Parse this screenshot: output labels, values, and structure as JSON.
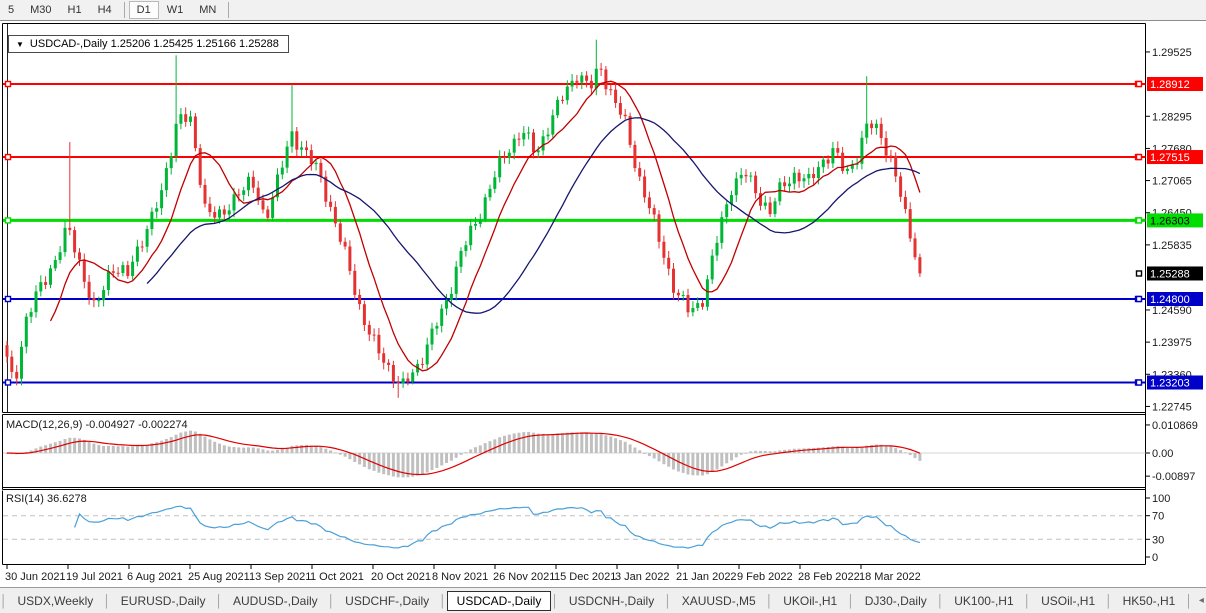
{
  "toolbar": {
    "timeframes": [
      {
        "label": "5",
        "active": false,
        "sep_after": false
      },
      {
        "label": "M30",
        "active": false,
        "sep_after": false
      },
      {
        "label": "H1",
        "active": false,
        "sep_after": false
      },
      {
        "label": "H4",
        "active": false,
        "sep_after": true
      },
      {
        "label": "D1",
        "active": true,
        "sep_after": false
      },
      {
        "label": "W1",
        "active": false,
        "sep_after": false
      },
      {
        "label": "MN",
        "active": false,
        "sep_after": true
      }
    ]
  },
  "header": {
    "dropdown_icon": "▼",
    "title_text": "USDCAD-,Daily  1.25206 1.25425 1.25166 1.25288"
  },
  "macd": {
    "label": "MACD(12,26,9) -0.004927 -0.002274",
    "ticks": [
      {
        "label": "0.010869",
        "value": 0.010869
      },
      {
        "label": "0.00",
        "value": 0
      },
      {
        "label": "-0.00897",
        "value": -0.00897
      }
    ]
  },
  "rsi": {
    "label": "RSI(14) 36.6278",
    "ticks": [
      {
        "label": "100",
        "value": 100
      },
      {
        "label": "70",
        "value": 70
      },
      {
        "label": "30",
        "value": 30
      },
      {
        "label": "0",
        "value": 0
      }
    ],
    "dashed_levels": [
      70,
      30
    ]
  },
  "tabs": {
    "items": [
      {
        "label": "USDX,Weekly",
        "active": false
      },
      {
        "label": "EURUSD-,Daily",
        "active": false
      },
      {
        "label": "AUDUSD-,Daily",
        "active": false
      },
      {
        "label": "USDCHF-,Daily",
        "active": false
      },
      {
        "label": "USDCAD-,Daily",
        "active": true
      },
      {
        "label": "USDCNH-,Daily",
        "active": false
      },
      {
        "label": "XAUUSD-,M5",
        "active": false
      },
      {
        "label": "UKOil-,H1",
        "active": false
      },
      {
        "label": "DJ30-,Daily",
        "active": false
      },
      {
        "label": "UK100-,H1",
        "active": false
      },
      {
        "label": "USOil-,H1",
        "active": false
      },
      {
        "label": "HK50-,H1",
        "active": false
      }
    ],
    "scroll_left_icon": "◂",
    "scroll_right_icon": "▸"
  },
  "chart_data": {
    "type": "candlestick",
    "symbol": "USDCAD-",
    "timeframe": "Daily",
    "ohlc_display": {
      "open": "1.25206",
      "high": "1.25425",
      "low": "1.25166",
      "close": "1.25288"
    },
    "last_close": 1.25288,
    "current_price_label": {
      "label": "1.25288",
      "price": 1.25288,
      "bg": "#000000",
      "fg": "#ffffff"
    },
    "y_ticks": [
      {
        "label": "1.29525",
        "price": 1.29525
      },
      {
        "label": "1.28295",
        "price": 1.28295
      },
      {
        "label": "1.27680",
        "price": 1.2768
      },
      {
        "label": "1.27065",
        "price": 1.27065
      },
      {
        "label": "1.26450",
        "price": 1.2645
      },
      {
        "label": "1.25835",
        "price": 1.25835
      },
      {
        "label": "1.24590",
        "price": 1.2459
      },
      {
        "label": "1.23975",
        "price": 1.23975
      },
      {
        "label": "1.23360",
        "price": 1.2336
      },
      {
        "label": "1.22745",
        "price": 1.22745
      }
    ],
    "x_dates": [
      "30 Jun 2021",
      "19 Jul 2021",
      "6 Aug 2021",
      "25 Aug 2021",
      "13 Sep 2021",
      "1 Oct 2021",
      "20 Oct 2021",
      "8 Nov 2021",
      "26 Nov 2021",
      "15 Dec 2021",
      "3 Jan 2022",
      "21 Jan 2022",
      "9 Feb 2022",
      "28 Feb 2022",
      "18 Mar 2022"
    ],
    "levels": [
      {
        "label": "1.28912",
        "price": 1.28912,
        "color": "#ff0000",
        "width": 2,
        "text": "#ffffff"
      },
      {
        "label": "1.27515",
        "price": 1.27515,
        "color": "#ff0000",
        "width": 2,
        "text": "#ffffff"
      },
      {
        "label": "1.26303",
        "price": 1.26303,
        "color": "#00dd00",
        "width": 3,
        "text": "#000000"
      },
      {
        "label": "1.24800",
        "price": 1.248,
        "color": "#0000c8",
        "width": 2,
        "text": "#ffffff"
      },
      {
        "label": "1.23203",
        "price": 1.23203,
        "color": "#0000c8",
        "width": 2,
        "text": "#ffffff"
      }
    ],
    "price_path": [
      [
        6,
        1.237
      ],
      [
        14,
        1.2315
      ],
      [
        26,
        1.244
      ],
      [
        40,
        1.25
      ],
      [
        55,
        1.2555
      ],
      [
        68,
        1.2615
      ],
      [
        78,
        1.256
      ],
      [
        95,
        1.2455
      ],
      [
        112,
        1.2545
      ],
      [
        128,
        1.2525
      ],
      [
        145,
        1.261
      ],
      [
        162,
        1.268
      ],
      [
        178,
        1.2835
      ],
      [
        190,
        1.282
      ],
      [
        205,
        1.266
      ],
      [
        222,
        1.263
      ],
      [
        238,
        1.269
      ],
      [
        252,
        1.27
      ],
      [
        265,
        1.2635
      ],
      [
        280,
        1.272
      ],
      [
        292,
        1.2795
      ],
      [
        306,
        1.276
      ],
      [
        320,
        1.2715
      ],
      [
        334,
        1.2635
      ],
      [
        348,
        1.2545
      ],
      [
        362,
        1.245
      ],
      [
        376,
        1.2385
      ],
      [
        390,
        1.2345
      ],
      [
        402,
        1.231
      ],
      [
        416,
        1.2345
      ],
      [
        430,
        1.2405
      ],
      [
        445,
        1.2465
      ],
      [
        460,
        1.2565
      ],
      [
        476,
        1.2625
      ],
      [
        492,
        1.2705
      ],
      [
        508,
        1.2765
      ],
      [
        522,
        1.2805
      ],
      [
        536,
        1.2755
      ],
      [
        550,
        1.282
      ],
      [
        564,
        1.287
      ],
      [
        578,
        1.2915
      ],
      [
        590,
        1.288
      ],
      [
        600,
        1.2925
      ],
      [
        612,
        1.287
      ],
      [
        625,
        1.2815
      ],
      [
        638,
        1.272
      ],
      [
        650,
        1.265
      ],
      [
        663,
        1.257
      ],
      [
        676,
        1.249
      ],
      [
        690,
        1.2455
      ],
      [
        704,
        1.2485
      ],
      [
        718,
        1.26
      ],
      [
        731,
        1.2695
      ],
      [
        745,
        1.272
      ],
      [
        758,
        1.268
      ],
      [
        770,
        1.2645
      ],
      [
        783,
        1.27
      ],
      [
        796,
        1.272
      ],
      [
        808,
        1.27
      ],
      [
        820,
        1.274
      ],
      [
        833,
        1.2762
      ],
      [
        846,
        1.272
      ],
      [
        858,
        1.2758
      ],
      [
        868,
        1.2815
      ],
      [
        880,
        1.28
      ],
      [
        893,
        1.2735
      ],
      [
        905,
        1.264
      ],
      [
        916,
        1.2565
      ],
      [
        925,
        1.25288
      ]
    ],
    "wick_extremes": [
      {
        "x": 68,
        "high": 1.278
      },
      {
        "x": 178,
        "high": 1.2946
      },
      {
        "x": 290,
        "high": 1.289
      },
      {
        "x": 398,
        "low": 1.2291
      },
      {
        "x": 597,
        "high": 1.2976
      },
      {
        "x": 866,
        "high": 1.2906
      }
    ],
    "indicators": [
      {
        "name": "MACD",
        "params": "12,26,9",
        "main": -0.004927,
        "signal": -0.002274
      },
      {
        "name": "RSI",
        "params": "14",
        "value": 36.6278
      }
    ],
    "moving_averages": [
      {
        "period": 10,
        "color": "#c00000"
      },
      {
        "period": 30,
        "color": "#16166e"
      }
    ],
    "colors": {
      "bull": "#00b636",
      "bear": "#e43232",
      "macd_hist": "#c0c0c0",
      "macd_signal": "#e00000",
      "rsi_line": "#4aa0d8",
      "dashed_level": "#c0c0c0",
      "axis_text": "#1a1a1a",
      "frame": "#000000"
    }
  }
}
